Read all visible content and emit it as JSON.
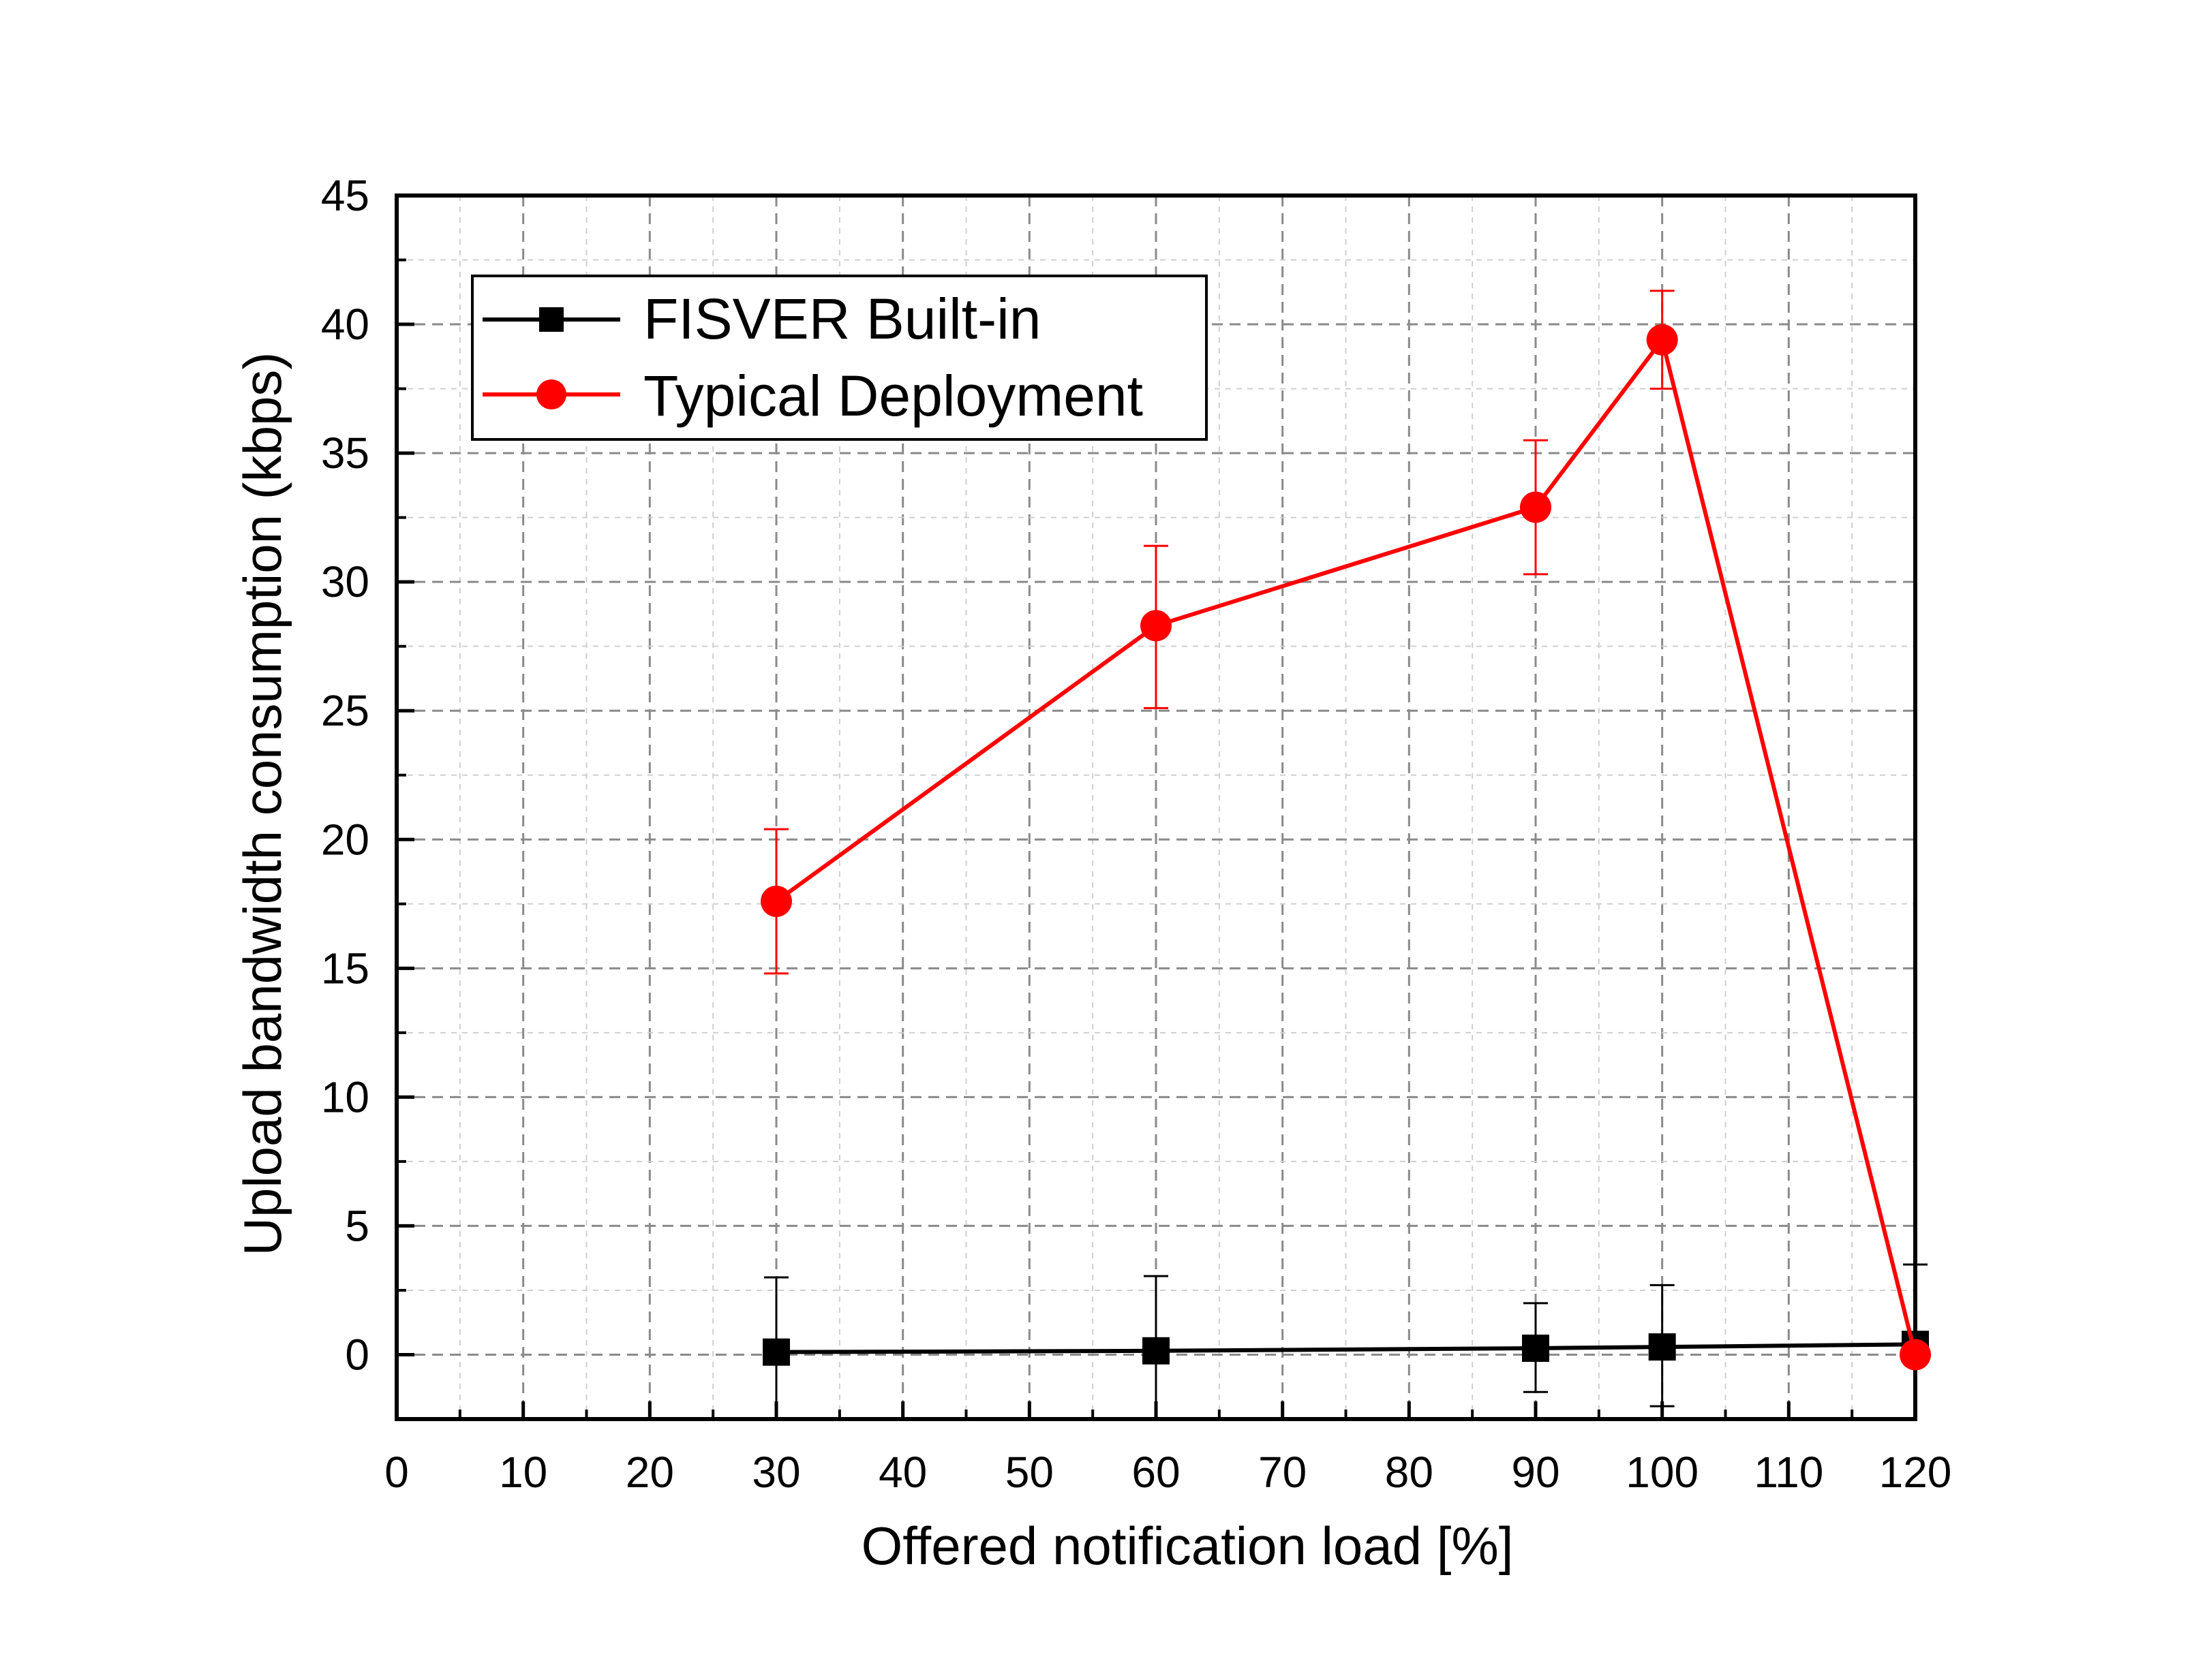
{
  "chart_data": {
    "type": "line",
    "title": "",
    "xlabel": "Offered notification load [%]",
    "ylabel": "Upload bandwidth consumption (kbps)",
    "xlim": [
      0,
      120
    ],
    "ylim": [
      -2.5,
      45
    ],
    "xticks": [
      0,
      10,
      20,
      30,
      40,
      50,
      60,
      70,
      80,
      90,
      100,
      110,
      120
    ],
    "yticks": [
      0,
      5,
      10,
      15,
      20,
      25,
      30,
      35,
      40,
      45
    ],
    "grid": true,
    "legend_position": "top-left",
    "series": [
      {
        "name": "FISVER Built-in",
        "color": "#000000",
        "marker": "square",
        "x": [
          30,
          60,
          90,
          100,
          120
        ],
        "y": [
          0.1,
          0.15,
          0.25,
          0.3,
          0.4
        ],
        "err_low": [
          3.0,
          3.0,
          1.7,
          2.3,
          0.4
        ],
        "err_high": [
          2.9,
          2.9,
          1.75,
          2.4,
          3.1
        ]
      },
      {
        "name": "Typical Deployment",
        "color": "#ff0000",
        "marker": "circle",
        "x": [
          30,
          60,
          90,
          100,
          120
        ],
        "y": [
          17.6,
          28.3,
          32.9,
          39.4,
          0.0
        ],
        "err_low": [
          2.8,
          3.2,
          2.6,
          1.9,
          0.0
        ],
        "err_high": [
          2.8,
          3.1,
          2.6,
          1.9,
          0.0
        ]
      }
    ]
  }
}
